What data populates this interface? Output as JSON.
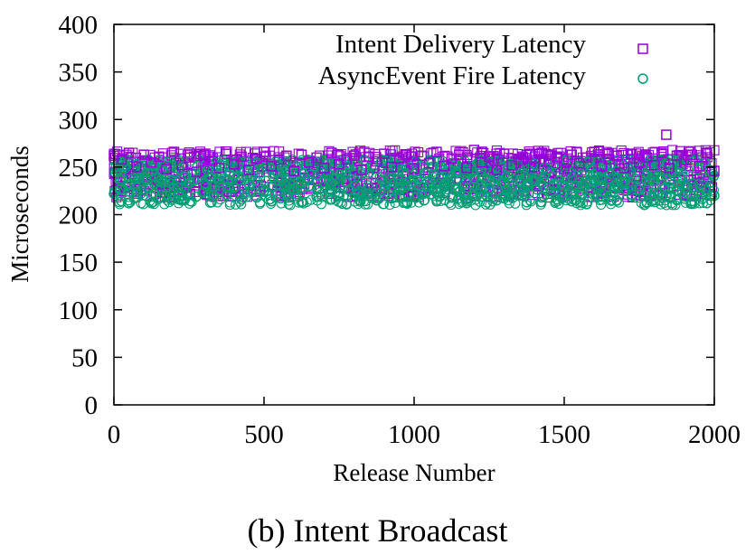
{
  "chart_data": {
    "type": "scatter",
    "caption": "(b) Intent Broadcast",
    "xlabel": "Release Number",
    "ylabel": "Microseconds",
    "xlim": [
      0,
      2000
    ],
    "ylim": [
      0,
      400
    ],
    "x_ticks": [
      "0",
      "500",
      "1000",
      "1500",
      "2000"
    ],
    "y_ticks": [
      "0",
      "50",
      "100",
      "150",
      "200",
      "250",
      "300",
      "350",
      "400"
    ],
    "grid": false,
    "legend_position": "top-right",
    "series": [
      {
        "name": "Intent Delivery Latency",
        "marker": "square",
        "color": "#9400d3",
        "typical_range": [
          218,
          268
        ],
        "x": [
          0,
          25,
          50,
          75,
          100,
          125,
          150,
          175,
          200,
          225,
          250,
          275,
          300,
          325,
          350,
          375,
          400,
          425,
          450,
          475,
          500,
          525,
          550,
          575,
          600,
          625,
          650,
          675,
          700,
          725,
          750,
          775,
          800,
          825,
          850,
          875,
          900,
          925,
          950,
          975,
          1000,
          1025,
          1050,
          1075,
          1100,
          1125,
          1150,
          1175,
          1200,
          1225,
          1250,
          1275,
          1300,
          1325,
          1350,
          1375,
          1400,
          1425,
          1450,
          1475,
          1500,
          1525,
          1550,
          1575,
          1600,
          1625,
          1650,
          1675,
          1700,
          1725,
          1750,
          1775,
          1800,
          1825,
          1840,
          1850,
          1875,
          1900,
          1925,
          1950,
          1975,
          2000
        ],
        "y": [
          262,
          258,
          265,
          250,
          263,
          255,
          261,
          248,
          266,
          252,
          260,
          245,
          263,
          257,
          249,
          264,
          253,
          261,
          247,
          259,
          266,
          251,
          258,
          262,
          246,
          263,
          255,
          260,
          249,
          265,
          253,
          258,
          262,
          247,
          261,
          256,
          264,
          250,
          259,
          263,
          248,
          262,
          254,
          266,
          251,
          259,
          263,
          249,
          268,
          255,
          261,
          247,
          264,
          252,
          258,
          263,
          250,
          265,
          256,
          261,
          248,
          263,
          254,
          260,
          266,
          251,
          258,
          262,
          249,
          264,
          255,
          260,
          252,
          265,
          284,
          249,
          262,
          257,
          263,
          251,
          265,
          246
        ]
      },
      {
        "name": "AsyncEvent Fire Latency",
        "marker": "circle",
        "color": "#009e73",
        "typical_range": [
          210,
          258
        ],
        "x": [
          0,
          25,
          50,
          75,
          100,
          125,
          150,
          175,
          200,
          225,
          250,
          275,
          300,
          325,
          350,
          375,
          400,
          425,
          450,
          475,
          500,
          525,
          550,
          575,
          600,
          625,
          650,
          675,
          700,
          725,
          750,
          775,
          800,
          825,
          850,
          875,
          900,
          925,
          950,
          975,
          1000,
          1025,
          1050,
          1075,
          1100,
          1125,
          1150,
          1175,
          1200,
          1225,
          1250,
          1275,
          1300,
          1325,
          1350,
          1375,
          1400,
          1425,
          1450,
          1475,
          1500,
          1525,
          1550,
          1575,
          1600,
          1625,
          1650,
          1675,
          1700,
          1725,
          1750,
          1775,
          1800,
          1825,
          1850,
          1875,
          1900,
          1925,
          1950,
          1975,
          2000
        ],
        "y": [
          222,
          214,
          231,
          218,
          226,
          212,
          235,
          220,
          228,
          215,
          233,
          219,
          224,
          213,
          238,
          221,
          229,
          216,
          232,
          218,
          225,
          214,
          236,
          222,
          227,
          213,
          230,
          219,
          234,
          216,
          223,
          211,
          237,
          220,
          228,
          215,
          231,
          217,
          226,
          213,
          235,
          221,
          229,
          214,
          232,
          218,
          224,
          212,
          238,
          219,
          227,
          215,
          233,
          220,
          225,
          213,
          236,
          218,
          229,
          216,
          231,
          214,
          224,
          211,
          237,
          219,
          228,
          215,
          233,
          221,
          226,
          213,
          235,
          218,
          229,
          216,
          231,
          214,
          224,
          212,
          220
        ]
      }
    ]
  }
}
